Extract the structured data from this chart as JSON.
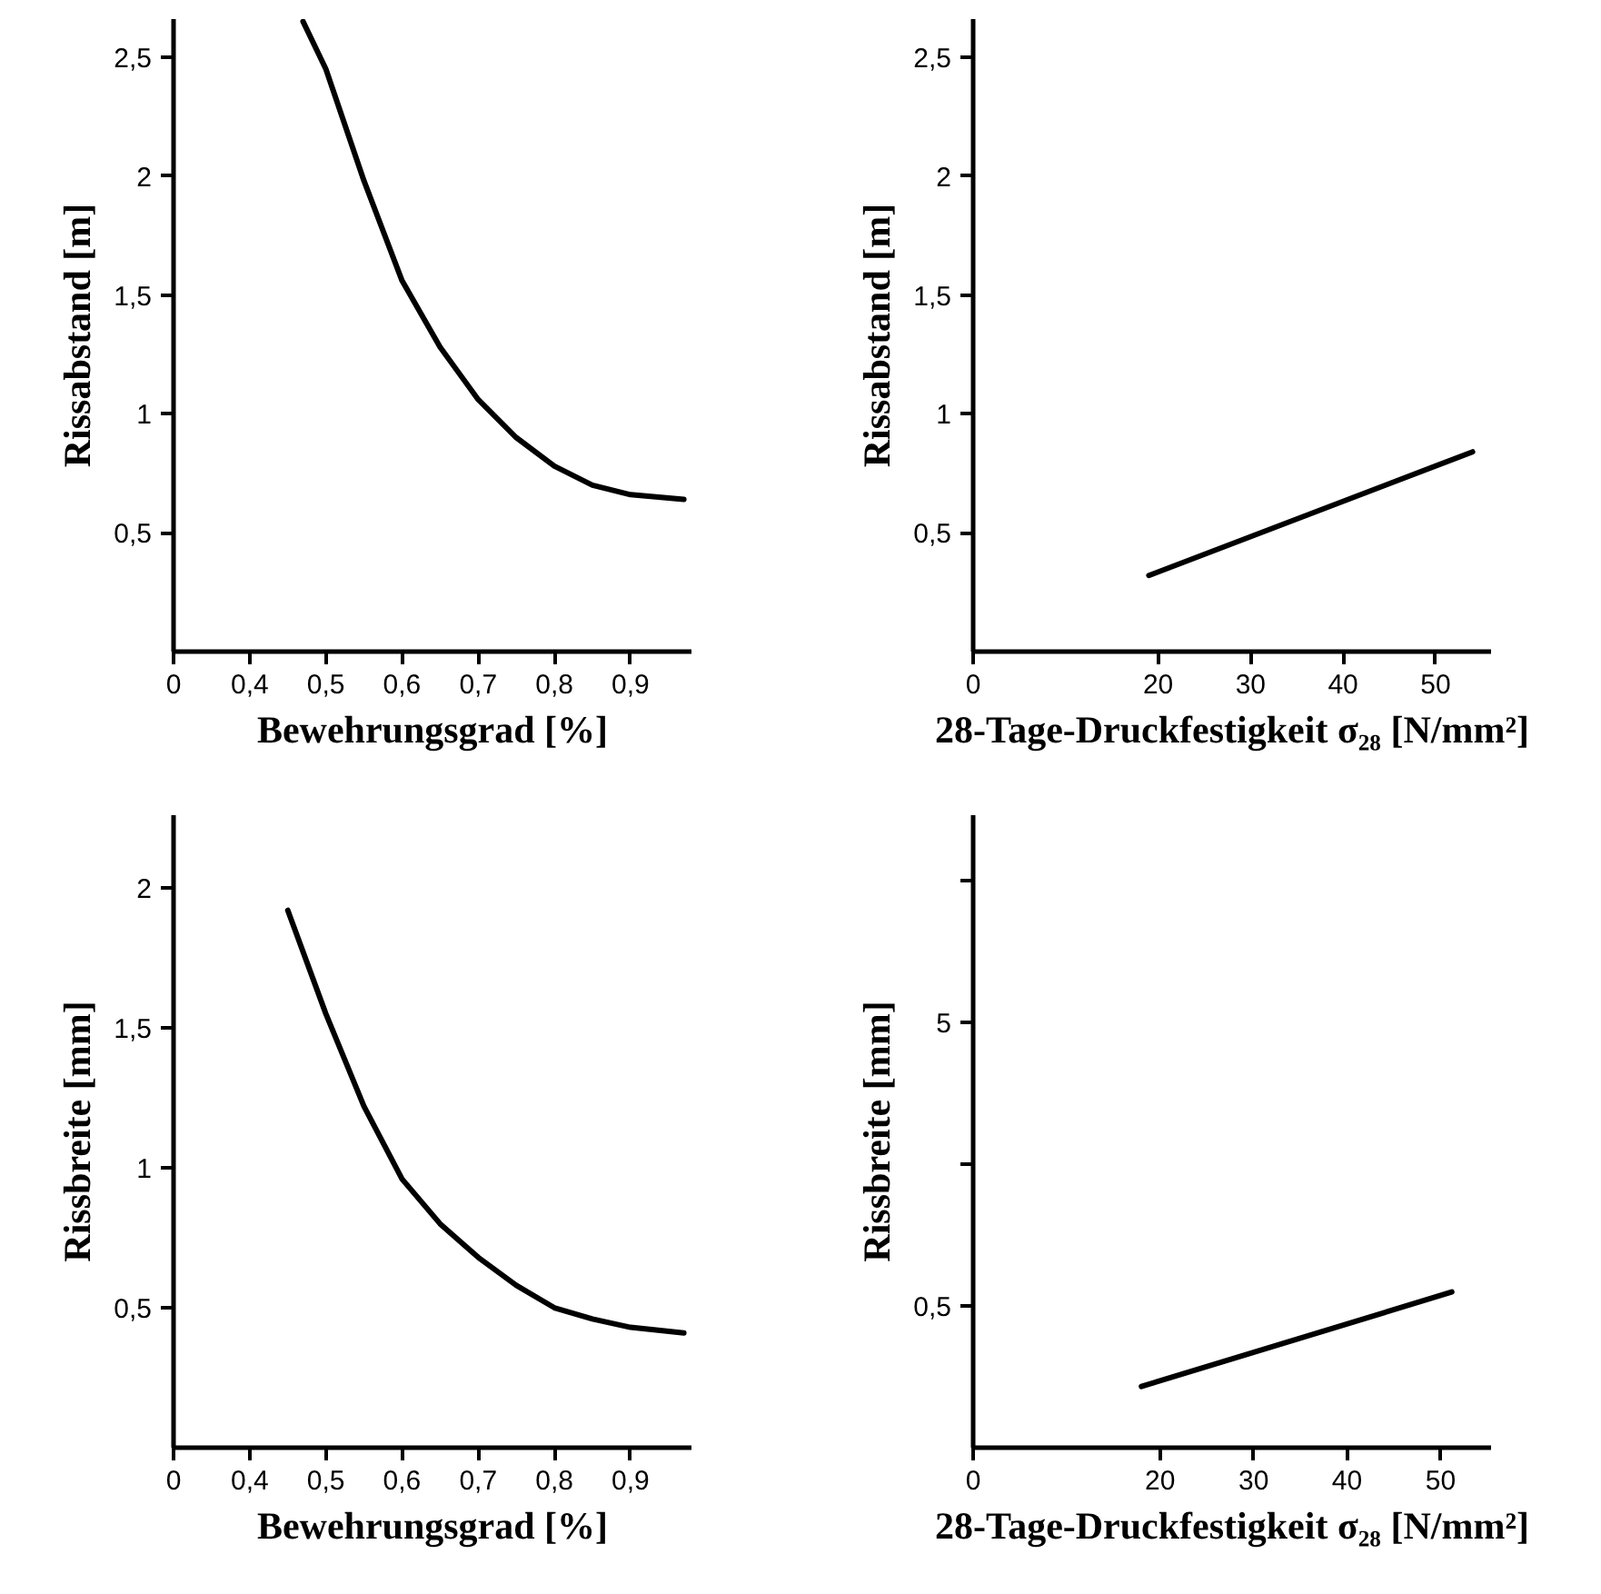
{
  "chart_data": [
    {
      "type": "line",
      "xlabel": "Bewehrungsgrad [%]",
      "ylabel": "Rissabstand [m]",
      "xlim": [
        0.3,
        0.98
      ],
      "ylim": [
        0,
        2.66
      ],
      "xticks": [
        {
          "value": 0.3,
          "label": "0"
        },
        {
          "value": 0.4,
          "label": "0,4"
        },
        {
          "value": 0.5,
          "label": "0,5"
        },
        {
          "value": 0.6,
          "label": "0,6"
        },
        {
          "value": 0.7,
          "label": "0,7"
        },
        {
          "value": 0.8,
          "label": "0,8"
        },
        {
          "value": 0.9,
          "label": "0,9"
        }
      ],
      "yticks": [
        {
          "value": 0.5,
          "label": "0,5"
        },
        1,
        {
          "value": 1.5,
          "label": "1,5"
        },
        2,
        {
          "value": 2.5,
          "label": "2,5"
        }
      ],
      "series": [
        {
          "color": "#000000",
          "x": [
            0.47,
            0.5,
            0.55,
            0.6,
            0.65,
            0.7,
            0.75,
            0.8,
            0.85,
            0.9,
            0.97
          ],
          "values": [
            2.65,
            2.45,
            1.98,
            1.56,
            1.28,
            1.06,
            0.9,
            0.78,
            0.7,
            0.66,
            0.64
          ]
        }
      ]
    },
    {
      "type": "line",
      "xlabel": "28-Tage-Druckfestigkeit σ₂₈ [N/mm²]",
      "ylabel": "Rissabstand [m]",
      "xlim": [
        0,
        56
      ],
      "ylim": [
        0,
        2.66
      ],
      "xticks": [
        0,
        20,
        30,
        40,
        50
      ],
      "yticks": [
        {
          "value": 0.5,
          "label": "0,5"
        },
        1,
        {
          "value": 1.5,
          "label": "1,5"
        },
        2,
        {
          "value": 2.5,
          "label": "2,5"
        }
      ],
      "series": [
        {
          "color": "#000000",
          "x": [
            19,
            54
          ],
          "values": [
            0.32,
            0.84
          ]
        }
      ]
    },
    {
      "type": "line",
      "xlabel": "Bewehrungsgrad [%]",
      "ylabel": "Rissbreite [mm]",
      "xlim": [
        0.3,
        0.98
      ],
      "ylim": [
        0,
        2.26
      ],
      "xticks": [
        {
          "value": 0.3,
          "label": "0"
        },
        {
          "value": 0.4,
          "label": "0,4"
        },
        {
          "value": 0.5,
          "label": "0,5"
        },
        {
          "value": 0.6,
          "label": "0,6"
        },
        {
          "value": 0.7,
          "label": "0,7"
        },
        {
          "value": 0.8,
          "label": "0,8"
        },
        {
          "value": 0.9,
          "label": "0,9"
        }
      ],
      "yticks": [
        {
          "value": 0.5,
          "label": "0,5"
        },
        1,
        {
          "value": 1.5,
          "label": "1,5"
        },
        2
      ],
      "series": [
        {
          "color": "#000000",
          "x": [
            0.45,
            0.5,
            0.55,
            0.6,
            0.65,
            0.7,
            0.75,
            0.8,
            0.85,
            0.9,
            0.97
          ],
          "values": [
            1.92,
            1.55,
            1.22,
            0.96,
            0.8,
            0.68,
            0.58,
            0.5,
            0.46,
            0.43,
            0.41
          ]
        }
      ]
    },
    {
      "type": "line",
      "xlabel": "28-Tage-Druckfestigkeit σ₂₈ [N/mm²]",
      "ylabel": "Rissbreite [mm]",
      "xlim": [
        0,
        55.4
      ],
      "ylim": [
        0.158,
        27
      ],
      "log": "y",
      "xticks": [
        0,
        20,
        30,
        40,
        50
      ],
      "yticks": [
        {
          "value": 0.5,
          "label": "0,5"
        },
        {
          "value": 1.58,
          "label": null
        },
        5,
        {
          "value": 15.8,
          "label": null
        }
      ],
      "series": [
        {
          "color": "#000000",
          "x": [
            18,
            51.2
          ],
          "values": [
            0.26,
            0.56
          ]
        }
      ]
    }
  ]
}
